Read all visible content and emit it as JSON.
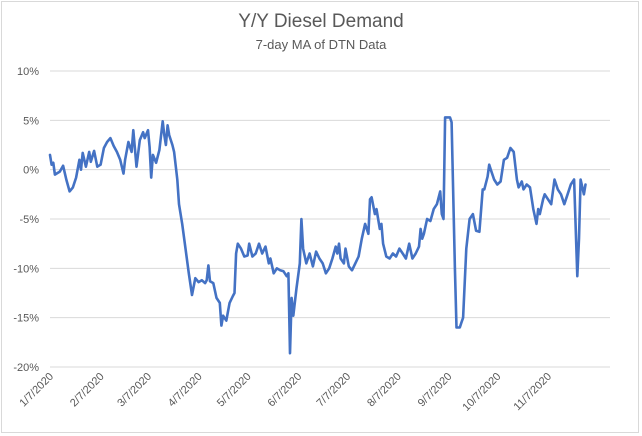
{
  "chart_data": {
    "type": "line",
    "title": "Y/Y Diesel Demand",
    "subtitle": "7-day MA of DTN Data",
    "xlabel": "",
    "ylabel": "",
    "ylim": [
      -0.2,
      0.1
    ],
    "xlim": [
      "2020-01-07",
      "2020-12-15"
    ],
    "grid": true,
    "legend": "none",
    "line_color": "#4472c4",
    "y_ticks": [
      {
        "value": 0.1,
        "label": "10%"
      },
      {
        "value": 0.05,
        "label": "5%"
      },
      {
        "value": 0.0,
        "label": "0%"
      },
      {
        "value": -0.05,
        "label": "-5%"
      },
      {
        "value": -0.1,
        "label": "-10%"
      },
      {
        "value": -0.15,
        "label": "-15%"
      },
      {
        "value": -0.2,
        "label": "-20%"
      }
    ],
    "x_ticks": [
      {
        "date": "2020-01-07",
        "label": "1/7/2020"
      },
      {
        "date": "2020-02-07",
        "label": "2/7/2020"
      },
      {
        "date": "2020-03-07",
        "label": "3/7/2020"
      },
      {
        "date": "2020-04-07",
        "label": "4/7/2020"
      },
      {
        "date": "2020-05-07",
        "label": "5/7/2020"
      },
      {
        "date": "2020-06-07",
        "label": "6/7/2020"
      },
      {
        "date": "2020-07-07",
        "label": "7/7/2020"
      },
      {
        "date": "2020-08-07",
        "label": "8/7/2020"
      },
      {
        "date": "2020-09-07",
        "label": "9/7/2020"
      },
      {
        "date": "2020-10-07",
        "label": "10/7/2020"
      },
      {
        "date": "2020-11-07",
        "label": "11/7/2020"
      }
    ],
    "series": [
      {
        "points": [
          [
            "2020-01-07",
            0.015
          ],
          [
            "2020-01-08",
            0.005
          ],
          [
            "2020-01-09",
            0.007
          ],
          [
            "2020-01-10",
            -0.005
          ],
          [
            "2020-01-11",
            -0.004
          ],
          [
            "2020-01-13",
            -0.002
          ],
          [
            "2020-01-15",
            0.004
          ],
          [
            "2020-01-17",
            -0.01
          ],
          [
            "2020-01-19",
            -0.022
          ],
          [
            "2020-01-21",
            -0.018
          ],
          [
            "2020-01-23",
            -0.008
          ],
          [
            "2020-01-25",
            0.01
          ],
          [
            "2020-01-26",
            0.0
          ],
          [
            "2020-01-27",
            0.017
          ],
          [
            "2020-01-29",
            0.003
          ],
          [
            "2020-01-31",
            0.018
          ],
          [
            "2020-02-01",
            0.008
          ],
          [
            "2020-02-03",
            0.019
          ],
          [
            "2020-02-05",
            0.003
          ],
          [
            "2020-02-07",
            0.005
          ],
          [
            "2020-02-09",
            0.022
          ],
          [
            "2020-02-11",
            0.028
          ],
          [
            "2020-02-13",
            0.032
          ],
          [
            "2020-02-15",
            0.024
          ],
          [
            "2020-02-17",
            0.018
          ],
          [
            "2020-02-19",
            0.01
          ],
          [
            "2020-02-21",
            -0.004
          ],
          [
            "2020-02-22",
            0.01
          ],
          [
            "2020-02-24",
            0.028
          ],
          [
            "2020-02-26",
            0.018
          ],
          [
            "2020-02-27",
            0.04
          ],
          [
            "2020-02-29",
            0.003
          ],
          [
            "2020-03-02",
            0.03
          ],
          [
            "2020-03-04",
            0.038
          ],
          [
            "2020-03-05",
            0.032
          ],
          [
            "2020-03-07",
            0.04
          ],
          [
            "2020-03-08",
            0.023
          ],
          [
            "2020-03-09",
            -0.008
          ],
          [
            "2020-03-10",
            0.015
          ],
          [
            "2020-03-12",
            0.007
          ],
          [
            "2020-03-14",
            0.02
          ],
          [
            "2020-03-16",
            0.049
          ],
          [
            "2020-03-17",
            0.035
          ],
          [
            "2020-03-18",
            0.025
          ],
          [
            "2020-03-19",
            0.045
          ],
          [
            "2020-03-20",
            0.035
          ],
          [
            "2020-03-22",
            0.025
          ],
          [
            "2020-03-23",
            0.018
          ],
          [
            "2020-03-25",
            -0.01
          ],
          [
            "2020-03-26",
            -0.035
          ],
          [
            "2020-03-28",
            -0.055
          ],
          [
            "2020-03-30",
            -0.08
          ],
          [
            "2020-04-01",
            -0.105
          ],
          [
            "2020-04-03",
            -0.127
          ],
          [
            "2020-04-05",
            -0.11
          ],
          [
            "2020-04-07",
            -0.114
          ],
          [
            "2020-04-09",
            -0.112
          ],
          [
            "2020-04-11",
            -0.115
          ],
          [
            "2020-04-12",
            -0.112
          ],
          [
            "2020-04-13",
            -0.097
          ],
          [
            "2020-04-14",
            -0.113
          ],
          [
            "2020-04-16",
            -0.115
          ],
          [
            "2020-04-18",
            -0.13
          ],
          [
            "2020-04-20",
            -0.135
          ],
          [
            "2020-04-21",
            -0.158
          ],
          [
            "2020-04-22",
            -0.148
          ],
          [
            "2020-04-24",
            -0.153
          ],
          [
            "2020-04-26",
            -0.135
          ],
          [
            "2020-04-28",
            -0.128
          ],
          [
            "2020-04-29",
            -0.125
          ],
          [
            "2020-04-30",
            -0.085
          ],
          [
            "2020-05-01",
            -0.075
          ],
          [
            "2020-05-03",
            -0.08
          ],
          [
            "2020-05-05",
            -0.088
          ],
          [
            "2020-05-07",
            -0.087
          ],
          [
            "2020-05-08",
            -0.075
          ],
          [
            "2020-05-10",
            -0.088
          ],
          [
            "2020-05-12",
            -0.085
          ],
          [
            "2020-05-14",
            -0.075
          ],
          [
            "2020-05-16",
            -0.085
          ],
          [
            "2020-05-18",
            -0.078
          ],
          [
            "2020-05-20",
            -0.095
          ],
          [
            "2020-05-21",
            -0.09
          ],
          [
            "2020-05-23",
            -0.105
          ],
          [
            "2020-05-25",
            -0.1
          ],
          [
            "2020-05-27",
            -0.102
          ],
          [
            "2020-05-29",
            -0.103
          ],
          [
            "2020-05-31",
            -0.108
          ],
          [
            "2020-06-01",
            -0.105
          ],
          [
            "2020-06-02",
            -0.186
          ],
          [
            "2020-06-03",
            -0.13
          ],
          [
            "2020-06-04",
            -0.148
          ],
          [
            "2020-06-06",
            -0.12
          ],
          [
            "2020-06-08",
            -0.095
          ],
          [
            "2020-06-09",
            -0.05
          ],
          [
            "2020-06-10",
            -0.08
          ],
          [
            "2020-06-12",
            -0.095
          ],
          [
            "2020-06-14",
            -0.085
          ],
          [
            "2020-06-16",
            -0.098
          ],
          [
            "2020-06-18",
            -0.083
          ],
          [
            "2020-06-20",
            -0.09
          ],
          [
            "2020-06-22",
            -0.095
          ],
          [
            "2020-06-24",
            -0.105
          ],
          [
            "2020-06-26",
            -0.1
          ],
          [
            "2020-06-28",
            -0.09
          ],
          [
            "2020-06-30",
            -0.078
          ],
          [
            "2020-07-01",
            -0.085
          ],
          [
            "2020-07-02",
            -0.075
          ],
          [
            "2020-07-03",
            -0.09
          ],
          [
            "2020-07-05",
            -0.095
          ],
          [
            "2020-07-06",
            -0.08
          ],
          [
            "2020-07-08",
            -0.098
          ],
          [
            "2020-07-10",
            -0.102
          ],
          [
            "2020-07-12",
            -0.095
          ],
          [
            "2020-07-14",
            -0.088
          ],
          [
            "2020-07-16",
            -0.07
          ],
          [
            "2020-07-18",
            -0.055
          ],
          [
            "2020-07-20",
            -0.065
          ],
          [
            "2020-07-21",
            -0.03
          ],
          [
            "2020-07-22",
            -0.028
          ],
          [
            "2020-07-24",
            -0.045
          ],
          [
            "2020-07-25",
            -0.04
          ],
          [
            "2020-07-27",
            -0.06
          ],
          [
            "2020-07-28",
            -0.055
          ],
          [
            "2020-07-29",
            -0.075
          ],
          [
            "2020-07-31",
            -0.088
          ],
          [
            "2020-08-02",
            -0.09
          ],
          [
            "2020-08-04",
            -0.085
          ],
          [
            "2020-08-06",
            -0.088
          ],
          [
            "2020-08-08",
            -0.08
          ],
          [
            "2020-08-10",
            -0.085
          ],
          [
            "2020-08-12",
            -0.09
          ],
          [
            "2020-08-14",
            -0.075
          ],
          [
            "2020-08-16",
            -0.09
          ],
          [
            "2020-08-18",
            -0.085
          ],
          [
            "2020-08-20",
            -0.078
          ],
          [
            "2020-08-21",
            -0.06
          ],
          [
            "2020-08-22",
            -0.07
          ],
          [
            "2020-08-23",
            -0.065
          ],
          [
            "2020-08-25",
            -0.05
          ],
          [
            "2020-08-27",
            -0.052
          ],
          [
            "2020-08-29",
            -0.04
          ],
          [
            "2020-08-31",
            -0.035
          ],
          [
            "2020-09-02",
            -0.022
          ],
          [
            "2020-09-03",
            -0.045
          ],
          [
            "2020-09-04",
            -0.05
          ],
          [
            "2020-09-05",
            0.053
          ],
          [
            "2020-09-07",
            0.053
          ],
          [
            "2020-09-08",
            0.053
          ],
          [
            "2020-09-09",
            0.048
          ],
          [
            "2020-09-11",
            -0.1
          ],
          [
            "2020-09-12",
            -0.16
          ],
          [
            "2020-09-14",
            -0.16
          ],
          [
            "2020-09-15",
            -0.155
          ],
          [
            "2020-09-16",
            -0.15
          ],
          [
            "2020-09-18",
            -0.08
          ],
          [
            "2020-09-20",
            -0.05
          ],
          [
            "2020-09-22",
            -0.045
          ],
          [
            "2020-09-24",
            -0.062
          ],
          [
            "2020-09-26",
            -0.063
          ],
          [
            "2020-09-28",
            -0.02
          ],
          [
            "2020-09-29",
            -0.02
          ],
          [
            "2020-10-01",
            -0.007
          ],
          [
            "2020-10-02",
            0.005
          ],
          [
            "2020-10-03",
            0.0
          ],
          [
            "2020-10-05",
            -0.01
          ],
          [
            "2020-10-07",
            -0.015
          ],
          [
            "2020-10-09",
            -0.012
          ],
          [
            "2020-10-11",
            0.01
          ],
          [
            "2020-10-13",
            0.012
          ],
          [
            "2020-10-15",
            0.022
          ],
          [
            "2020-10-17",
            0.018
          ],
          [
            "2020-10-19",
            -0.01
          ],
          [
            "2020-10-20",
            -0.018
          ],
          [
            "2020-10-22",
            -0.012
          ],
          [
            "2020-10-23",
            -0.02
          ],
          [
            "2020-10-25",
            -0.015
          ],
          [
            "2020-10-27",
            -0.018
          ],
          [
            "2020-10-29",
            -0.04
          ],
          [
            "2020-10-31",
            -0.055
          ],
          [
            "2020-11-01",
            -0.04
          ],
          [
            "2020-11-02",
            -0.045
          ],
          [
            "2020-11-04",
            -0.03
          ],
          [
            "2020-11-05",
            -0.025
          ],
          [
            "2020-11-07",
            -0.03
          ],
          [
            "2020-11-09",
            -0.035
          ],
          [
            "2020-11-11",
            -0.01
          ],
          [
            "2020-11-13",
            -0.02
          ],
          [
            "2020-11-15",
            -0.025
          ],
          [
            "2020-11-17",
            -0.035
          ],
          [
            "2020-11-19",
            -0.025
          ],
          [
            "2020-11-21",
            -0.015
          ],
          [
            "2020-11-23",
            -0.01
          ],
          [
            "2020-11-25",
            -0.108
          ],
          [
            "2020-11-26",
            -0.07
          ],
          [
            "2020-11-27",
            -0.01
          ],
          [
            "2020-11-29",
            -0.025
          ],
          [
            "2020-11-30",
            -0.015
          ]
        ]
      }
    ]
  }
}
